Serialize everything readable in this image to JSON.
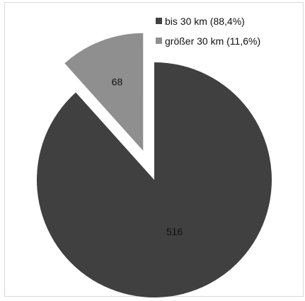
{
  "chart_data": {
    "type": "pie",
    "title": "",
    "slices": [
      {
        "name": "bis 30 km (88,4%)",
        "value": 516,
        "value_label": "516",
        "color": "#404040",
        "exploded": false
      },
      {
        "name": "größer 30 km (11,6%)",
        "value": 68,
        "value_label": "68",
        "color": "#8f8f8f",
        "exploded": true
      }
    ],
    "legend": {
      "placement": "top-right",
      "entries": [
        "bis 30 km (88,4%)",
        "größer 30 km (11,6%)"
      ]
    },
    "start_angle": "top",
    "direction": "clockwise"
  }
}
